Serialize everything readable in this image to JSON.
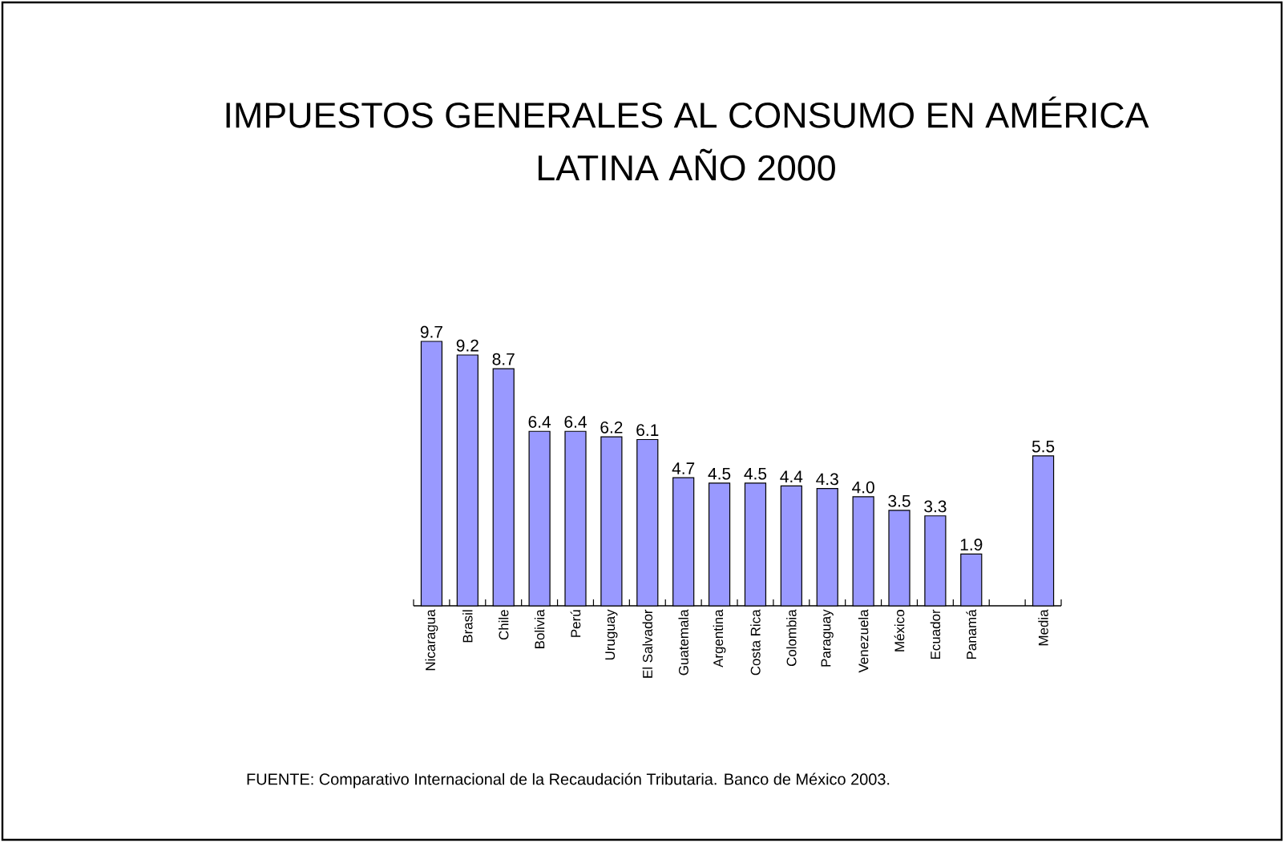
{
  "chart_data": {
    "type": "bar",
    "title": "IMPUESTOS GENERALES AL CONSUMO EN AMÉRICA LATINA AÑO 2000",
    "categories": [
      "Nicaragua",
      "Brasil",
      "Chile",
      "Bolivia",
      "Perú",
      "Uruguay",
      "El Salvador",
      "Guatemala",
      "Argentina",
      "Costa Rica",
      "Colombia",
      "Paraguay",
      "Venezuela",
      "México",
      "Ecuador",
      "Panamá",
      null,
      "Media"
    ],
    "values": [
      9.7,
      9.2,
      8.7,
      6.4,
      6.4,
      6.2,
      6.1,
      4.7,
      4.5,
      4.5,
      4.4,
      4.3,
      4.0,
      3.5,
      3.3,
      1.9,
      null,
      5.5
    ],
    "value_labels": [
      "9.7",
      "9.2",
      "8.7",
      "6.4",
      "6.4",
      "6.2",
      "6.1",
      "4.7",
      "4.5",
      "4.5",
      "4.4",
      "4.3",
      "4.0",
      "3.5",
      "3.3",
      "1.9",
      null,
      "5.5"
    ],
    "color": "#9999ff",
    "annotations": [
      "FUENTE: Comparativo Internacional de la Recaudación Tributaria. Banco de México 2003."
    ]
  }
}
